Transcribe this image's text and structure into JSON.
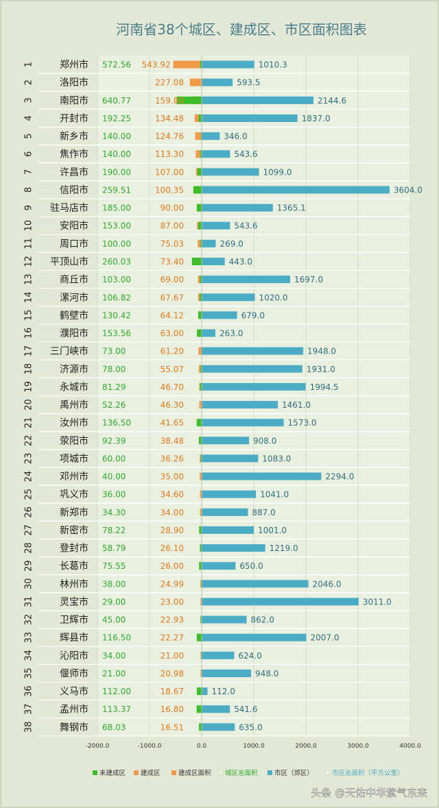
{
  "chart_data": {
    "type": "bar",
    "orientation": "horizontal",
    "title": "河南省38个城区、建成区、市区面积图表",
    "xlim": [
      -2000,
      4000
    ],
    "x_ticks": [
      -2000,
      -1000,
      0,
      1000,
      2000,
      3000,
      4000
    ],
    "x_tick_labels": [
      "-2000.0",
      "-1000.0",
      "0.0",
      "1000.0",
      "2000.0",
      "3000.0",
      "4000.0"
    ],
    "legend": [
      {
        "name": "未建成区",
        "color": "#3dbe28"
      },
      {
        "name": "建成区",
        "color": "#f2994a"
      },
      {
        "name": "建成区面积",
        "color": "#f2994a"
      },
      {
        "name": "城区总面积",
        "color": "#e9f1dd"
      },
      {
        "name": "市区（郊区）",
        "color": "#4bacc6"
      },
      {
        "name": "市区总面积（平方公里）",
        "color": "#eef3e6"
      }
    ],
    "colors": {
      "unbuilt": "#3dbe28",
      "built": "#f2994a",
      "suburb": "#4bacc6",
      "urban_label": "#2eaa2e",
      "built_label": "#e07a1e",
      "total_label": "#2f6e7d"
    },
    "rows": [
      {
        "rank": "1",
        "city": "郑州市",
        "urban_area": "572.56",
        "built_area": "543.92",
        "total_area": "1010.3"
      },
      {
        "rank": "2",
        "city": "洛阳市",
        "urban_area": "",
        "built_area": "227.08",
        "total_area": "593.5"
      },
      {
        "rank": "3",
        "city": "南阳市",
        "urban_area": "640.77",
        "built_area": "159.80",
        "total_area": "2144.6"
      },
      {
        "rank": "4",
        "city": "开封市",
        "urban_area": "192.25",
        "built_area": "134.48",
        "total_area": "1837.0"
      },
      {
        "rank": "5",
        "city": "新乡市",
        "urban_area": "140.00",
        "built_area": "124.76",
        "total_area": "346.0"
      },
      {
        "rank": "6",
        "city": "焦作市",
        "urban_area": "140.00",
        "built_area": "113.30",
        "total_area": "543.6"
      },
      {
        "rank": "7",
        "city": "许昌市",
        "urban_area": "190.00",
        "built_area": "107.00",
        "total_area": "1099.0"
      },
      {
        "rank": "8",
        "city": "信阳市",
        "urban_area": "259.51",
        "built_area": "100.35",
        "total_area": "3604.0"
      },
      {
        "rank": "9",
        "city": "驻马店市",
        "urban_area": "185.00",
        "built_area": "90.00",
        "total_area": "1365.1"
      },
      {
        "rank": "10",
        "city": "安阳市",
        "urban_area": "153.00",
        "built_area": "87.00",
        "total_area": "543.6"
      },
      {
        "rank": "11",
        "city": "周口市",
        "urban_area": "100.00",
        "built_area": "75.03",
        "total_area": "269.0"
      },
      {
        "rank": "12",
        "city": "平顶山市",
        "urban_area": "260.03",
        "built_area": "73.40",
        "total_area": "443.0"
      },
      {
        "rank": "13",
        "city": "商丘市",
        "urban_area": "103.00",
        "built_area": "69.00",
        "total_area": "1697.0"
      },
      {
        "rank": "14",
        "city": "漯河市",
        "urban_area": "106.82",
        "built_area": "67.67",
        "total_area": "1020.0"
      },
      {
        "rank": "15",
        "city": "鹤壁市",
        "urban_area": "130.42",
        "built_area": "64.12",
        "total_area": "679.0"
      },
      {
        "rank": "16",
        "city": "濮阳市",
        "urban_area": "153.56",
        "built_area": "63.00",
        "total_area": "263.0"
      },
      {
        "rank": "17",
        "city": "三门峡市",
        "urban_area": "73.00",
        "built_area": "61.20",
        "total_area": "1948.0"
      },
      {
        "rank": "18",
        "city": "济源市",
        "urban_area": "78.00",
        "built_area": "55.07",
        "total_area": "1931.0"
      },
      {
        "rank": "19",
        "city": "永城市",
        "urban_area": "81.29",
        "built_area": "46.70",
        "total_area": "1994.5"
      },
      {
        "rank": "20",
        "city": "禹州市",
        "urban_area": "52.26",
        "built_area": "46.30",
        "total_area": "1461.0"
      },
      {
        "rank": "21",
        "city": "汝州市",
        "urban_area": "136.50",
        "built_area": "41.65",
        "total_area": "1573.0"
      },
      {
        "rank": "22",
        "city": "荥阳市",
        "urban_area": "92.39",
        "built_area": "38.48",
        "total_area": "908.0"
      },
      {
        "rank": "23",
        "city": "项城市",
        "urban_area": "60.00",
        "built_area": "36.26",
        "total_area": "1083.0"
      },
      {
        "rank": "24",
        "city": "邓州市",
        "urban_area": "40.00",
        "built_area": "35.00",
        "total_area": "2294.0"
      },
      {
        "rank": "25",
        "city": "巩义市",
        "urban_area": "36.00",
        "built_area": "34.60",
        "total_area": "1041.0"
      },
      {
        "rank": "26",
        "city": "新郑市",
        "urban_area": "34.30",
        "built_area": "34.00",
        "total_area": "887.0"
      },
      {
        "rank": "27",
        "city": "新密市",
        "urban_area": "78.22",
        "built_area": "28.90",
        "total_area": "1001.0"
      },
      {
        "rank": "28",
        "city": "登封市",
        "urban_area": "58.79",
        "built_area": "26.10",
        "total_area": "1219.0"
      },
      {
        "rank": "29",
        "city": "长葛市",
        "urban_area": "75.55",
        "built_area": "26.00",
        "total_area": "650.0"
      },
      {
        "rank": "30",
        "city": "林州市",
        "urban_area": "38.00",
        "built_area": "24.99",
        "total_area": "2046.0"
      },
      {
        "rank": "31",
        "city": "灵宝市",
        "urban_area": "29.00",
        "built_area": "23.00",
        "total_area": "3011.0"
      },
      {
        "rank": "32",
        "city": "卫辉市",
        "urban_area": "45.00",
        "built_area": "22.93",
        "total_area": "862.0"
      },
      {
        "rank": "33",
        "city": "辉县市",
        "urban_area": "116.50",
        "built_area": "22.27",
        "total_area": "2007.0"
      },
      {
        "rank": "34",
        "city": "沁阳市",
        "urban_area": "34.00",
        "built_area": "21.00",
        "total_area": "624.0"
      },
      {
        "rank": "35",
        "city": "偃师市",
        "urban_area": "21.00",
        "built_area": "20.98",
        "total_area": "948.0"
      },
      {
        "rank": "36",
        "city": "义马市",
        "urban_area": "112.00",
        "built_area": "18.67",
        "total_area": "112.0"
      },
      {
        "rank": "37",
        "city": "孟州市",
        "urban_area": "113.37",
        "built_area": "16.80",
        "total_area": "541.6"
      },
      {
        "rank": "38",
        "city": "舞钢市",
        "urban_area": "68.03",
        "built_area": "16.51",
        "total_area": "635.0"
      }
    ]
  },
  "watermark": "头条 @天佑中华紫气东来"
}
